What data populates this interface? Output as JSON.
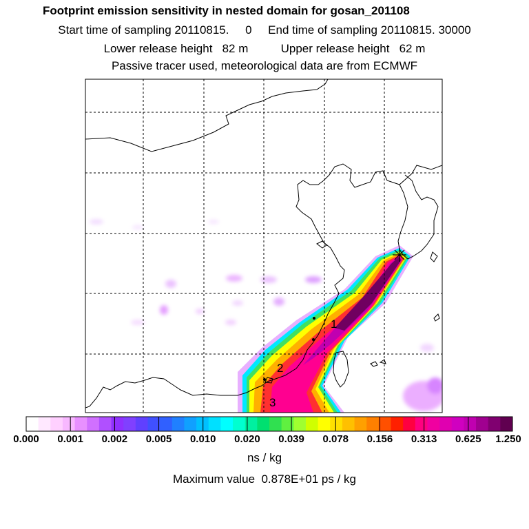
{
  "header": {
    "title": "Footprint emission sensitivity in nested domain for gosan_201108",
    "sampling_line": "Start time of sampling 20110815.     0     End time of sampling 20110815. 30000",
    "height_line": "Lower release height   82 m          Upper release height   62 m",
    "tracer_line": "Passive tracer used, meteorological data are from ECMWF"
  },
  "map": {
    "marker_labels": [
      "1",
      "2",
      "3"
    ],
    "receptor_symbol": "receptor-star"
  },
  "colorbar": {
    "tick_labels": [
      "0.000",
      "0.001",
      "0.002",
      "0.005",
      "0.010",
      "0.020",
      "0.039",
      "0.078",
      "0.156",
      "0.313",
      "0.625",
      "1.250"
    ],
    "colors": [
      "#ffffff",
      "#ffe8ff",
      "#ffd0ff",
      "#f8b8ff",
      "#e890ff",
      "#d070ff",
      "#b050ff",
      "#9030ff",
      "#8040ff",
      "#6040ff",
      "#4050ff",
      "#3060ff",
      "#2080ff",
      "#10a0ff",
      "#00c0ff",
      "#00e0ff",
      "#00ffff",
      "#00ffd0",
      "#00f0a0",
      "#00e070",
      "#30e050",
      "#60f040",
      "#a0ff30",
      "#d0ff00",
      "#ffff00",
      "#ffe000",
      "#ffc000",
      "#ffa000",
      "#ff8000",
      "#ff5000",
      "#ff2000",
      "#ff0040",
      "#ff0080",
      "#f000a0",
      "#e000b0",
      "#d000c0",
      "#c000b0",
      "#a00090",
      "#800070",
      "#600050"
    ],
    "units": "ns / kg"
  },
  "footer": {
    "maximum_value": "Maximum value  0.878E+01 ps / kg"
  }
}
